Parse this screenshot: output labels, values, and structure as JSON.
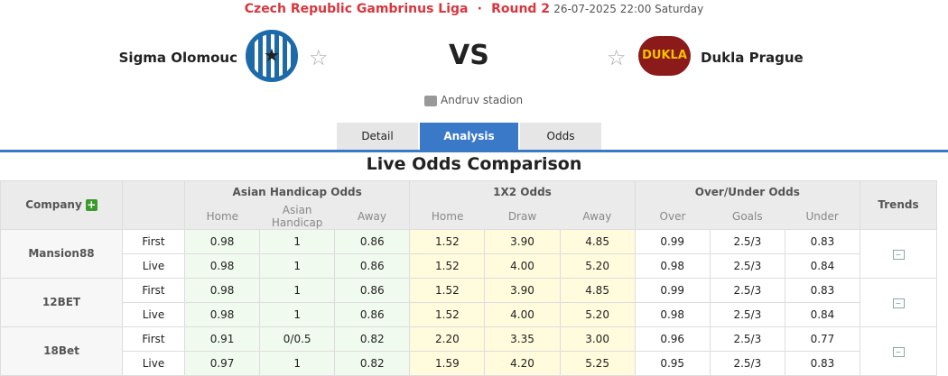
{
  "header": {
    "league": "Czech Republic Gambrinus Liga",
    "separator": "·",
    "round": "Round 2",
    "datetime": "26-07-2025 22:00 Saturday",
    "home_team": "Sigma Olomouc",
    "away_team": "Dukla Prague",
    "vs": "VS",
    "stadium": "Andruv stadion",
    "home_logo_text": "SK SIGMA OLOMOUC",
    "away_logo_text": "DUKLA PRAHA"
  },
  "tabs": [
    {
      "label": "Detail"
    },
    {
      "label": "Analysis",
      "active": true
    },
    {
      "label": "Odds"
    }
  ],
  "section_title": "Live Odds Comparison",
  "table": {
    "company": "Company",
    "groups": [
      "Asian Handicap Odds",
      "1X2 Odds",
      "Over/Under Odds"
    ],
    "trends": "Trends",
    "subheaders": [
      "Home",
      "Asian Handicap",
      "Away",
      "Home",
      "Draw",
      "Away",
      "Over",
      "Goals",
      "Under"
    ],
    "rows": [
      {
        "company": "Mansion88",
        "lines": [
          {
            "type": "First",
            "v": [
              "0.98",
              "1",
              "0.86",
              "1.52",
              "3.90",
              "4.85",
              "0.99",
              "2.5/3",
              "0.83"
            ]
          },
          {
            "type": "Live",
            "v": [
              "0.98",
              "1",
              "0.86",
              "1.52",
              "4.00",
              "5.20",
              "0.98",
              "2.5/3",
              "0.84"
            ]
          }
        ]
      },
      {
        "company": "12BET",
        "lines": [
          {
            "type": "First",
            "v": [
              "0.98",
              "1",
              "0.86",
              "1.52",
              "3.90",
              "4.85",
              "0.99",
              "2.5/3",
              "0.83"
            ]
          },
          {
            "type": "Live",
            "v": [
              "0.98",
              "1",
              "0.86",
              "1.52",
              "4.00",
              "5.20",
              "0.98",
              "2.5/3",
              "0.84"
            ]
          }
        ]
      },
      {
        "company": "18Bet",
        "lines": [
          {
            "type": "First",
            "v": [
              "0.91",
              "0/0.5",
              "0.82",
              "2.20",
              "3.35",
              "3.00",
              "0.96",
              "2.5/3",
              "0.77"
            ]
          },
          {
            "type": "Live",
            "v": [
              "0.97",
              "1",
              "0.82",
              "1.59",
              "4.20",
              "5.25",
              "0.95",
              "2.5/3",
              "0.83"
            ]
          }
        ]
      }
    ]
  },
  "colors": {
    "accent": "#3a78c8",
    "league": "#d9363e",
    "ah_bg": "#f1faee",
    "x12_bg": "#fffbdc"
  }
}
